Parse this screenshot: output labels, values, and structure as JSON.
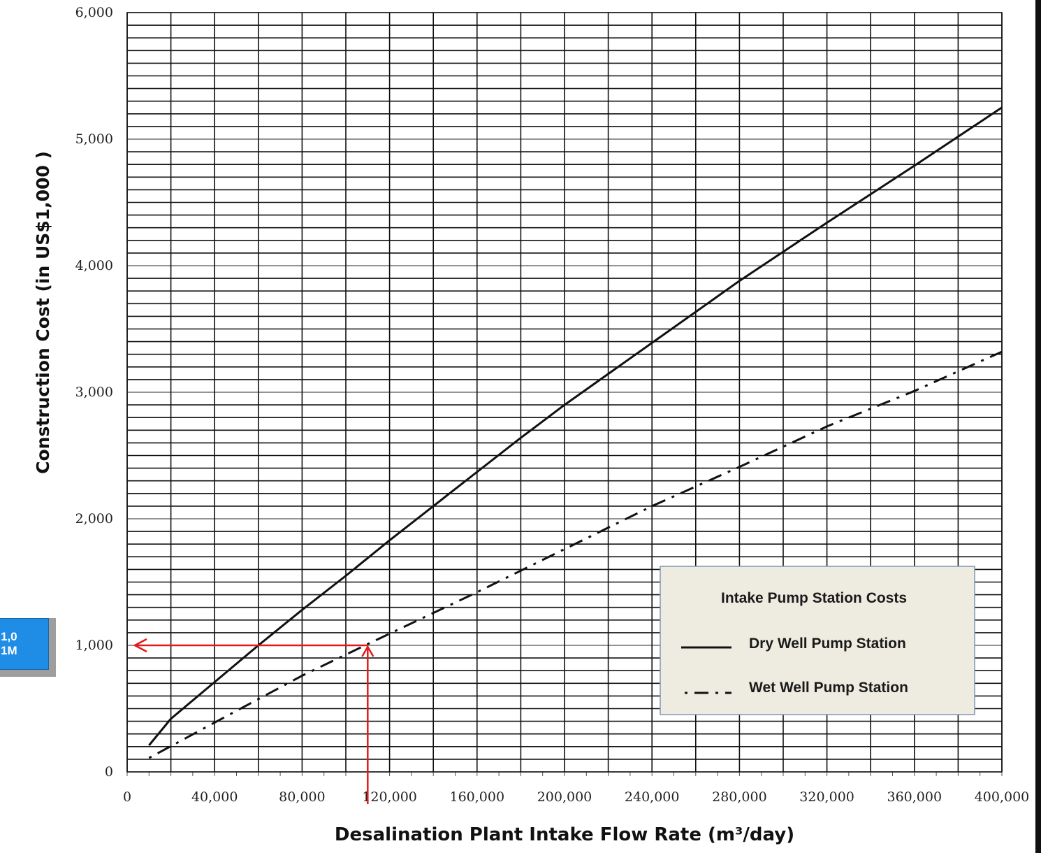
{
  "callout": {
    "line1": "1,0",
    "line2": "1M",
    "bg_color": "#1f8de6"
  },
  "chart_data": {
    "type": "line",
    "title": "",
    "xlabel": "Desalination Plant Intake Flow Rate (m³/day)",
    "ylabel": "Construction Cost  (in  US$1,000 )",
    "xlim": [
      0,
      400000
    ],
    "ylim": [
      0,
      6000
    ],
    "x_ticks": [
      0,
      40000,
      80000,
      120000,
      160000,
      200000,
      240000,
      280000,
      320000,
      360000,
      400000
    ],
    "x_tick_labels": [
      "0",
      "40,000",
      "80,000",
      "120,000",
      "160,000",
      "200,000",
      "240,000",
      "280,000",
      "320,000",
      "360,000",
      "400,000"
    ],
    "y_ticks": [
      0,
      1000,
      2000,
      3000,
      4000,
      5000,
      6000
    ],
    "y_tick_labels": [
      "0",
      "1,000",
      "2,000",
      "3,000",
      "4,000",
      "5,000",
      "6,000"
    ],
    "grid": true,
    "legend": {
      "title": "Intake Pump Station Costs",
      "placement": "bottom-right",
      "entries": [
        "Dry Well Pump Station",
        "Wet Well Pump Station"
      ]
    },
    "series": [
      {
        "name": "Dry Well Pump Station",
        "style": "solid",
        "x": [
          10000,
          20000,
          40000,
          60000,
          80000,
          100000,
          120000,
          140000,
          160000,
          180000,
          200000,
          240000,
          280000,
          320000,
          360000,
          400000
        ],
        "y": [
          210,
          420,
          710,
          1000,
          1280,
          1550,
          1830,
          2100,
          2370,
          2640,
          2900,
          3390,
          3880,
          4340,
          4790,
          5250
        ]
      },
      {
        "name": "Wet Well Pump Station",
        "style": "dash-dot",
        "x": [
          10000,
          40000,
          80000,
          110000,
          160000,
          200000,
          240000,
          280000,
          320000,
          360000,
          400000
        ],
        "y": [
          110,
          390,
          760,
          1010,
          1420,
          1760,
          2100,
          2410,
          2730,
          3010,
          3320
        ]
      }
    ],
    "annotation": {
      "x": 110000,
      "y": 1000,
      "color": "#e11b1b"
    }
  }
}
